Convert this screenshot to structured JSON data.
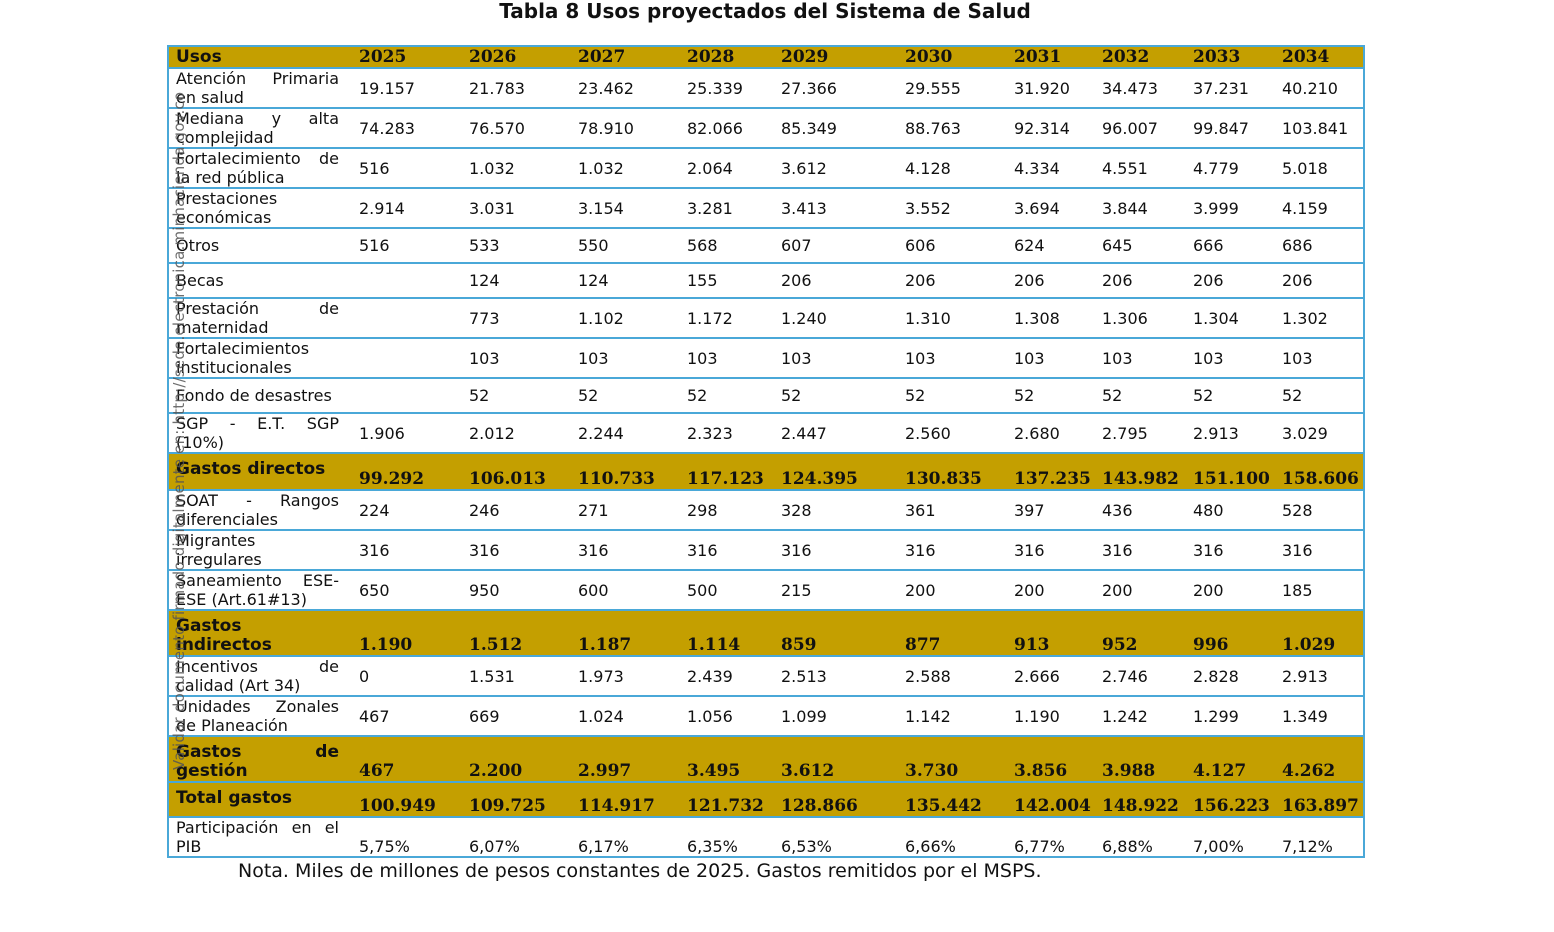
{
  "title": "Tabla 8 Usos proyectados del Sistema de Salud",
  "header": {
    "label": "Usos",
    "years": [
      "2025",
      "2026",
      "2027",
      "2028",
      "2029",
      "2030",
      "2031",
      "2032",
      "2033",
      "2034"
    ]
  },
  "rows": [
    {
      "label": "Atención Primaria en salud",
      "values": [
        "19.157",
        "21.783",
        "23.462",
        "25.339",
        "27.366",
        "29.555",
        "31.920",
        "34.473",
        "37.231",
        "40.210"
      ]
    },
    {
      "label": "Mediana y alta complejidad",
      "values": [
        "74.283",
        "76.570",
        "78.910",
        "82.066",
        "85.349",
        "88.763",
        "92.314",
        "96.007",
        "99.847",
        "103.841"
      ]
    },
    {
      "label": "Fortalecimiento de la red pública",
      "values": [
        "516",
        "1.032",
        "1.032",
        "2.064",
        "3.612",
        "4.128",
        "4.334",
        "4.551",
        "4.779",
        "5.018"
      ]
    },
    {
      "label": "Prestaciones económicas",
      "values": [
        "2.914",
        "3.031",
        "3.154",
        "3.281",
        "3.413",
        "3.552",
        "3.694",
        "3.844",
        "3.999",
        "4.159"
      ]
    },
    {
      "label": "Otros",
      "values": [
        "516",
        "533",
        "550",
        "568",
        "607",
        "606",
        "624",
        "645",
        "666",
        "686"
      ]
    },
    {
      "label": "Becas",
      "values": [
        "",
        "124",
        "124",
        "155",
        "206",
        "206",
        "206",
        "206",
        "206",
        "206"
      ]
    },
    {
      "label": "Prestación de maternidad",
      "values": [
        "",
        "773",
        "1.102",
        "1.172",
        "1.240",
        "1.310",
        "1.308",
        "1.306",
        "1.304",
        "1.302"
      ]
    },
    {
      "label": "Fortalecimientos institucionales",
      "values": [
        "",
        "103",
        "103",
        "103",
        "103",
        "103",
        "103",
        "103",
        "103",
        "103"
      ]
    },
    {
      "label": "Fondo de desastres",
      "values": [
        "",
        "52",
        "52",
        "52",
        "52",
        "52",
        "52",
        "52",
        "52",
        "52"
      ]
    },
    {
      "label": "SGP - E.T. SGP (10%)",
      "values": [
        "1.906",
        "2.012",
        "2.244",
        "2.323",
        "2.447",
        "2.560",
        "2.680",
        "2.795",
        "2.913",
        "3.029"
      ]
    },
    {
      "label": "Gastos directos",
      "subtotal": true,
      "values": [
        "99.292",
        "106.013",
        "110.733",
        "117.123",
        "124.395",
        "130.835",
        "137.235",
        "143.982",
        "151.100",
        "158.606"
      ]
    },
    {
      "label": "SOAT - Rangos diferenciales",
      "values": [
        "224",
        "246",
        "271",
        "298",
        "328",
        "361",
        "397",
        "436",
        "480",
        "528"
      ]
    },
    {
      "label": "Migrantes irregulares",
      "values": [
        "316",
        "316",
        "316",
        "316",
        "316",
        "316",
        "316",
        "316",
        "316",
        "316"
      ]
    },
    {
      "label": "Saneamiento ESE-ESE (Art.61#13)",
      "values": [
        "650",
        "950",
        "600",
        "500",
        "215",
        "200",
        "200",
        "200",
        "200",
        "185"
      ]
    },
    {
      "label": "Gastos indirectos",
      "subtotal": true,
      "values": [
        "1.190",
        "1.512",
        "1.187",
        "1.114",
        "859",
        "877",
        "913",
        "952",
        "996",
        "1.029"
      ]
    },
    {
      "label": "Incentivos de calidad (Art 34)",
      "values": [
        "0",
        "1.531",
        "1.973",
        "2.439",
        "2.513",
        "2.588",
        "2.666",
        "2.746",
        "2.828",
        "2.913"
      ]
    },
    {
      "label": "Unidades Zonales de Planeación",
      "values": [
        "467",
        "669",
        "1.024",
        "1.056",
        "1.099",
        "1.142",
        "1.190",
        "1.242",
        "1.299",
        "1.349"
      ]
    },
    {
      "label": "Gastos de gestión",
      "subtotal": true,
      "values": [
        "467",
        "2.200",
        "2.997",
        "3.495",
        "3.612",
        "3.730",
        "3.856",
        "3.988",
        "4.127",
        "4.262"
      ]
    },
    {
      "label": "Total gastos",
      "subtotal": true,
      "values": [
        "100.949",
        "109.725",
        "114.917",
        "121.732",
        "128.866",
        "135.442",
        "142.004",
        "148.922",
        "156.223",
        "163.897"
      ]
    },
    {
      "label": "Participación en el PIB",
      "bottom": true,
      "values": [
        "5,75%",
        "6,07%",
        "6,17%",
        "6,35%",
        "6,53%",
        "6,66%",
        "6,77%",
        "6,88%",
        "7,00%",
        "7,12%"
      ]
    }
  ],
  "watermark": "Validar documento firmado digitalmente en: http://sede.electronica.minhacienda.gov.co",
  "note": "Nota. Miles de millones de pesos constantes de 2025. Gastos remitidos por el MSPS.",
  "colors": {
    "header_fill": "#c49f00",
    "border": "#4aa8d8"
  }
}
